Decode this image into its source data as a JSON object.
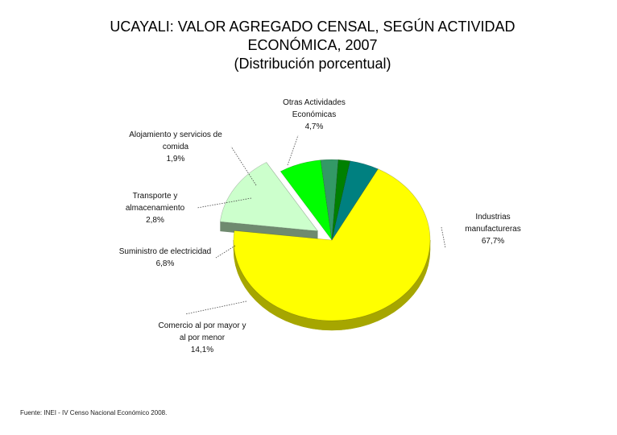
{
  "chart_data": {
    "type": "pie",
    "title_lines": [
      "UCAYALI: VALOR AGREGADO CENSAL, SEGÚN ACTIVIDAD",
      "ECONÓMICA, 2007",
      "(Distribución porcentual)"
    ],
    "slices": [
      {
        "label_lines": [
          "Industrias",
          "manufactureras"
        ],
        "value_text": "67,7%",
        "value": 67.7,
        "color": "#ffff00",
        "side_color": "#a6a600"
      },
      {
        "label_lines": [
          "Comercio al por mayor y",
          "al por menor"
        ],
        "value_text": "14,1%",
        "value": 14.1,
        "color": "#ccffcc",
        "side_color": "#6f8a6f"
      },
      {
        "label_lines": [
          "Suministro de electricidad"
        ],
        "value_text": "6,8%",
        "value": 6.8,
        "color": "#00ff00",
        "side_color": "#0a8a0a"
      },
      {
        "label_lines": [
          "Transporte y",
          "almacenamiento"
        ],
        "value_text": "2,8%",
        "value": 2.8,
        "color": "#339966",
        "side_color": "#1d5a3c"
      },
      {
        "label_lines": [
          "Alojamiento y servicios de",
          "comida"
        ],
        "value_text": "1,9%",
        "value": 1.9,
        "color": "#008000",
        "side_color": "#004d00"
      },
      {
        "label_lines": [
          "Otras Actividades",
          "Económicas"
        ],
        "value_text": "4,7%",
        "value": 4.7,
        "color": "#008080",
        "side_color": "#004d4d"
      }
    ]
  },
  "source": "Fuente: INEI - IV Censo Nacional Económico 2008."
}
